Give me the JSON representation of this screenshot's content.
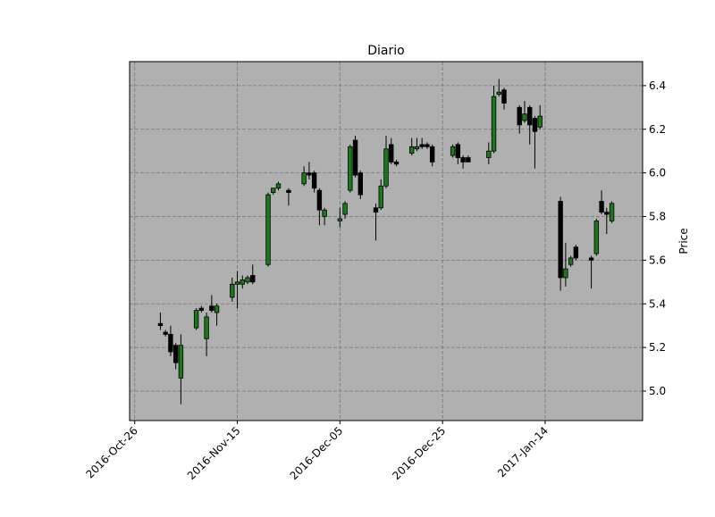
{
  "chart_data": {
    "type": "candlestick",
    "title": "Diario",
    "y_label": "Price",
    "x": [
      "2016-10-31",
      "2016-11-01",
      "2016-11-02",
      "2016-11-03",
      "2016-11-04",
      "2016-11-07",
      "2016-11-08",
      "2016-11-09",
      "2016-11-10",
      "2016-11-11",
      "2016-11-14",
      "2016-11-15",
      "2016-11-16",
      "2016-11-17",
      "2016-11-18",
      "2016-11-21",
      "2016-11-22",
      "2016-11-23",
      "2016-11-25",
      "2016-11-28",
      "2016-11-29",
      "2016-11-30",
      "2016-12-01",
      "2016-12-02",
      "2016-12-05",
      "2016-12-06",
      "2016-12-07",
      "2016-12-08",
      "2016-12-09",
      "2016-12-12",
      "2016-12-13",
      "2016-12-14",
      "2016-12-15",
      "2016-12-16",
      "2016-12-19",
      "2016-12-20",
      "2016-12-21",
      "2016-12-22",
      "2016-12-23",
      "2016-12-27",
      "2016-12-28",
      "2016-12-29",
      "2016-12-30",
      "2017-01-03",
      "2017-01-04",
      "2017-01-05",
      "2017-01-06",
      "2017-01-09",
      "2017-01-10",
      "2017-01-11",
      "2017-01-12",
      "2017-01-13",
      "2017-01-17",
      "2017-01-18",
      "2017-01-19",
      "2017-01-20",
      "2017-01-23",
      "2017-01-24",
      "2017-01-25",
      "2017-01-26",
      "2017-01-27"
    ],
    "open": [
      5.31,
      5.27,
      5.26,
      5.21,
      5.06,
      5.29,
      5.38,
      5.24,
      5.39,
      5.36,
      5.43,
      5.49,
      5.49,
      5.5,
      5.53,
      5.58,
      5.91,
      5.93,
      5.92,
      5.95,
      6.0,
      6.0,
      5.92,
      5.8,
      5.78,
      5.81,
      5.92,
      6.15,
      6.0,
      5.84,
      5.84,
      5.94,
      6.13,
      6.05,
      6.09,
      6.11,
      6.13,
      6.13,
      6.12,
      6.08,
      6.13,
      6.07,
      6.07,
      6.07,
      6.1,
      6.36,
      6.38,
      6.3,
      6.24,
      6.3,
      6.25,
      6.21,
      5.87,
      5.52,
      5.58,
      5.66,
      5.61,
      5.63,
      5.87,
      5.82,
      5.78
    ],
    "high": [
      5.36,
      5.28,
      5.3,
      5.22,
      5.26,
      5.38,
      5.39,
      5.36,
      5.44,
      5.4,
      5.52,
      5.55,
      5.53,
      5.53,
      5.58,
      5.91,
      5.93,
      5.96,
      5.93,
      6.03,
      6.05,
      6.01,
      5.93,
      5.84,
      5.84,
      5.87,
      6.13,
      6.17,
      6.01,
      5.86,
      5.97,
      6.17,
      6.16,
      6.06,
      6.16,
      6.16,
      6.16,
      6.14,
      6.13,
      6.13,
      6.14,
      6.08,
      6.08,
      6.14,
      6.4,
      6.43,
      6.39,
      6.31,
      6.33,
      6.31,
      6.26,
      6.31,
      5.89,
      5.68,
      5.62,
      5.67,
      5.62,
      5.79,
      5.92,
      5.84,
      5.87
    ],
    "low": [
      5.28,
      5.25,
      5.16,
      5.1,
      4.94,
      5.28,
      5.36,
      5.16,
      5.36,
      5.3,
      5.41,
      5.38,
      5.47,
      5.49,
      5.49,
      5.57,
      5.9,
      5.92,
      5.85,
      5.94,
      5.97,
      5.91,
      5.76,
      5.76,
      5.75,
      5.79,
      5.91,
      5.98,
      5.88,
      5.69,
      5.83,
      5.93,
      6.04,
      6.03,
      6.08,
      6.1,
      6.11,
      6.11,
      6.03,
      6.07,
      6.04,
      6.02,
      6.05,
      6.04,
      6.09,
      6.35,
      6.29,
      6.18,
      6.23,
      6.13,
      6.02,
      6.2,
      5.46,
      5.48,
      5.57,
      5.6,
      5.47,
      5.62,
      5.81,
      5.72,
      5.77
    ],
    "close": [
      5.3,
      5.26,
      5.18,
      5.13,
      5.21,
      5.37,
      5.37,
      5.34,
      5.37,
      5.39,
      5.49,
      5.5,
      5.51,
      5.52,
      5.5,
      5.9,
      5.93,
      5.95,
      5.91,
      6.0,
      5.99,
      5.93,
      5.83,
      5.83,
      5.79,
      5.86,
      6.12,
      5.99,
      5.9,
      5.82,
      5.94,
      6.11,
      6.05,
      6.04,
      6.12,
      6.12,
      6.12,
      6.12,
      6.05,
      6.12,
      6.07,
      6.05,
      6.05,
      6.1,
      6.35,
      6.37,
      6.32,
      6.22,
      6.27,
      6.22,
      6.19,
      6.26,
      5.52,
      5.56,
      5.61,
      5.61,
      5.6,
      5.78,
      5.82,
      5.81,
      5.86
    ],
    "up_color": "#1a7a1a",
    "down_color": "#000000",
    "xlim": [
      "2016-10-25",
      "2017-02-02"
    ],
    "xticks": [
      {
        "value": "2016-10-26",
        "label": "2016-Oct-26"
      },
      {
        "value": "2016-11-15",
        "label": "2016-Nov-15"
      },
      {
        "value": "2016-12-05",
        "label": "2016-Dec-05"
      },
      {
        "value": "2016-12-25",
        "label": "2016-Dec-25"
      },
      {
        "value": "2017-01-14",
        "label": "2017-Jan-14"
      }
    ],
    "ylim": [
      4.865,
      6.51
    ],
    "yticks": [
      {
        "value": 5,
        "label": "5.0"
      },
      5.2,
      5.4,
      5.6,
      5.8,
      {
        "value": 6,
        "label": "6.0"
      },
      6.2,
      6.4
    ],
    "grid": true
  }
}
